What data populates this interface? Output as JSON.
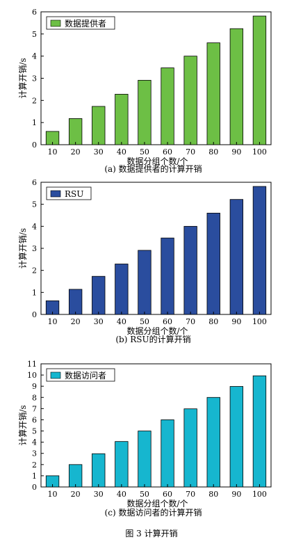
{
  "figure_caption": "图 3   计算开销",
  "chart_data": [
    {
      "type": "bar",
      "categories": [
        "10",
        "20",
        "30",
        "40",
        "50",
        "60",
        "70",
        "80",
        "90",
        "100"
      ],
      "series": [
        {
          "name": "数据提供者",
          "values": [
            0.6,
            1.18,
            1.73,
            2.28,
            2.91,
            3.47,
            4.0,
            4.6,
            5.24,
            5.81
          ]
        }
      ],
      "xlabel": "数据分组个数/个",
      "ylabel": "计算开销/s",
      "ylim": [
        0,
        6
      ],
      "yticks": [
        0,
        1,
        2,
        3,
        4,
        5,
        6
      ],
      "caption": "(a) 数据提供者的计算开销",
      "color": "#6dbf45",
      "grid": false,
      "legend_position": "top-left"
    },
    {
      "type": "bar",
      "categories": [
        "10",
        "20",
        "30",
        "40",
        "50",
        "60",
        "70",
        "80",
        "90",
        "100"
      ],
      "series": [
        {
          "name": "RSU",
          "values": [
            0.62,
            1.14,
            1.73,
            2.29,
            2.91,
            3.47,
            4.0,
            4.6,
            5.22,
            5.81
          ]
        }
      ],
      "xlabel": "数据分组个数/个",
      "ylabel": "计算开销/s",
      "ylim": [
        0,
        6
      ],
      "yticks": [
        0,
        1,
        2,
        3,
        4,
        5,
        6
      ],
      "caption": "(b) RSU的计算开销",
      "color": "#2a4d9e",
      "grid": false,
      "legend_position": "top-left"
    },
    {
      "type": "bar",
      "categories": [
        "10",
        "20",
        "30",
        "40",
        "50",
        "60",
        "70",
        "80",
        "90",
        "100"
      ],
      "series": [
        {
          "name": "数据访问者",
          "values": [
            1.0,
            2.0,
            2.97,
            4.06,
            5.0,
            6.0,
            6.98,
            8.0,
            8.98,
            9.93
          ]
        }
      ],
      "xlabel": "数据分组个数/个",
      "ylabel": "计算开销/s",
      "ylim": [
        0,
        11
      ],
      "yticks": [
        0,
        1,
        2,
        3,
        4,
        5,
        6,
        7,
        8,
        9,
        10,
        11
      ],
      "caption": "(c) 数据访问者的计算开销",
      "color": "#16b6cf",
      "grid": false,
      "legend_position": "top-left"
    }
  ]
}
